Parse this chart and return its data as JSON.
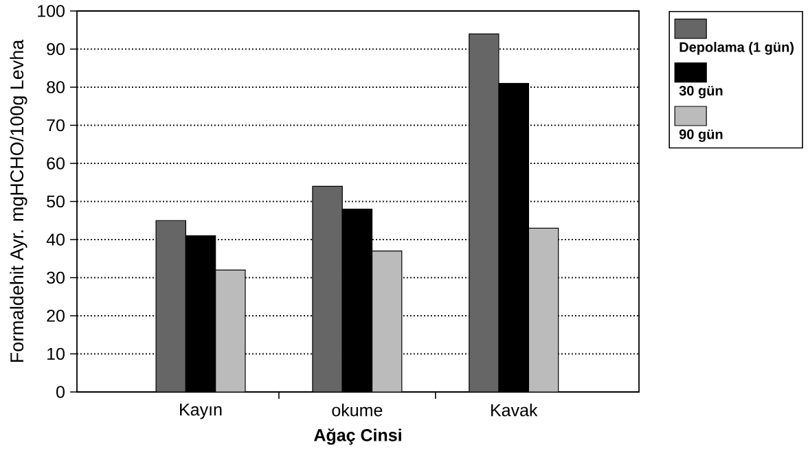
{
  "chart_data": {
    "type": "bar",
    "xlabel": "Ağaç Cinsi",
    "ylabel": "Formaldehit Ayr. mgHCHO/100g Levha",
    "categories": [
      "Kayın",
      "okume",
      "Kavak"
    ],
    "series": [
      {
        "name": "Depolama (1 gün)",
        "color": "#666666",
        "values": [
          45,
          54,
          94
        ]
      },
      {
        "name": "30 gün",
        "color": "#000000",
        "values": [
          41,
          48,
          81
        ]
      },
      {
        "name": "90 gün",
        "color": "#bbbbbb",
        "values": [
          32,
          37,
          43
        ]
      }
    ],
    "ylim": [
      0,
      100
    ],
    "yticks": [
      0,
      10,
      20,
      30,
      40,
      50,
      60,
      70,
      80,
      90,
      100
    ],
    "grid": "y",
    "legend": "top right"
  }
}
